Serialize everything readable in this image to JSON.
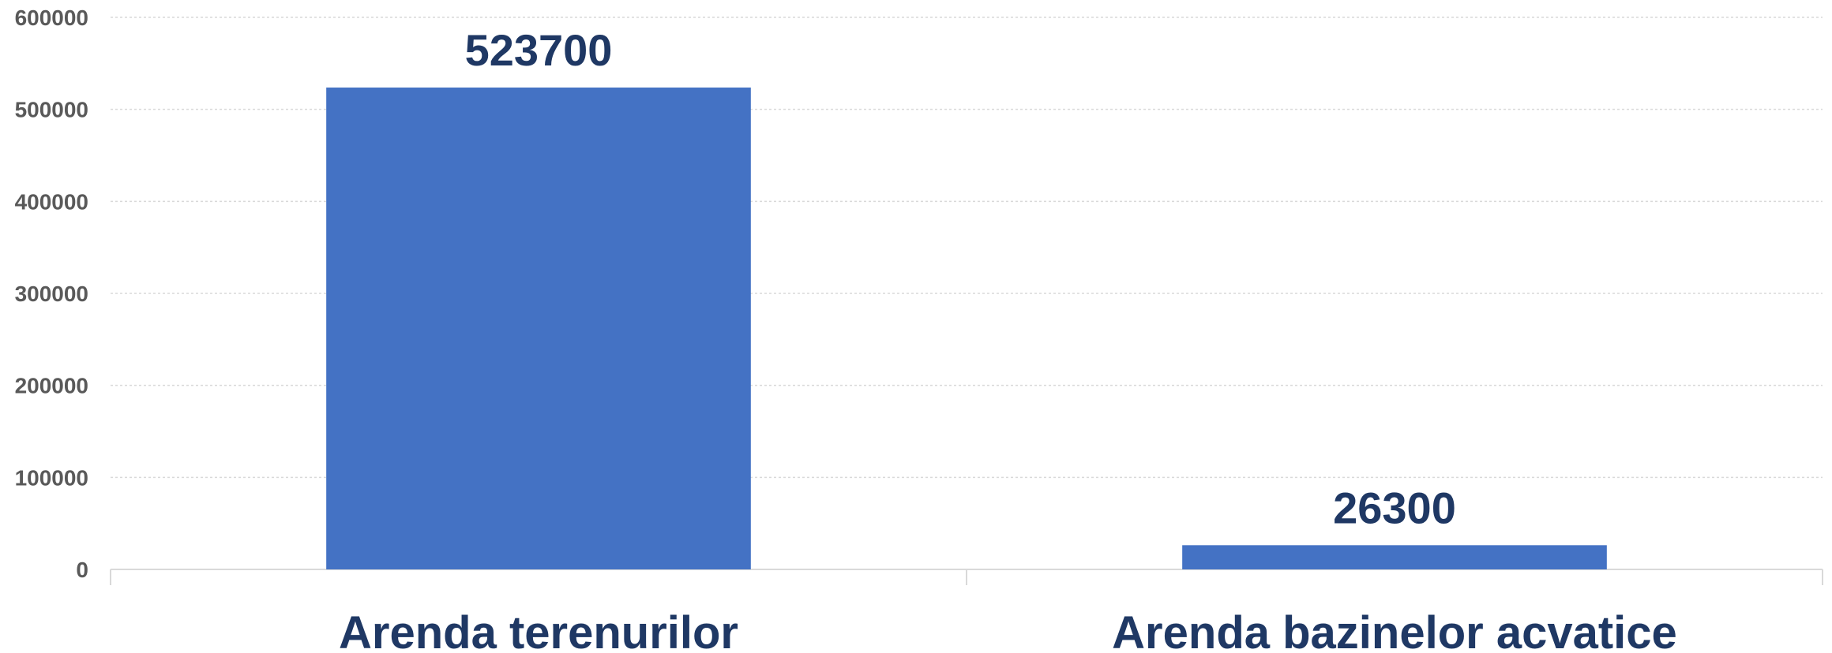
{
  "chart_data": {
    "type": "bar",
    "title": "",
    "xlabel": "",
    "ylabel": "",
    "categories": [
      "Arenda terenurilor",
      "Arenda bazinelor acvatice"
    ],
    "values": [
      523700,
      26300
    ],
    "data_labels": [
      "523700",
      "26300"
    ],
    "ylim": [
      0,
      600000
    ],
    "y_ticks": [
      0,
      100000,
      200000,
      300000,
      400000,
      500000,
      600000
    ],
    "y_tick_labels": [
      "0",
      "100000",
      "200000",
      "300000",
      "400000",
      "500000",
      "600000"
    ],
    "grid": true,
    "legend": "none"
  },
  "colors": {
    "bar": "#4472C4",
    "data_label": "#1F3864",
    "category_label": "#1F3864",
    "tick_label": "#595959",
    "gridline": "#D9D9D9",
    "axis": "#D9D9D9"
  }
}
